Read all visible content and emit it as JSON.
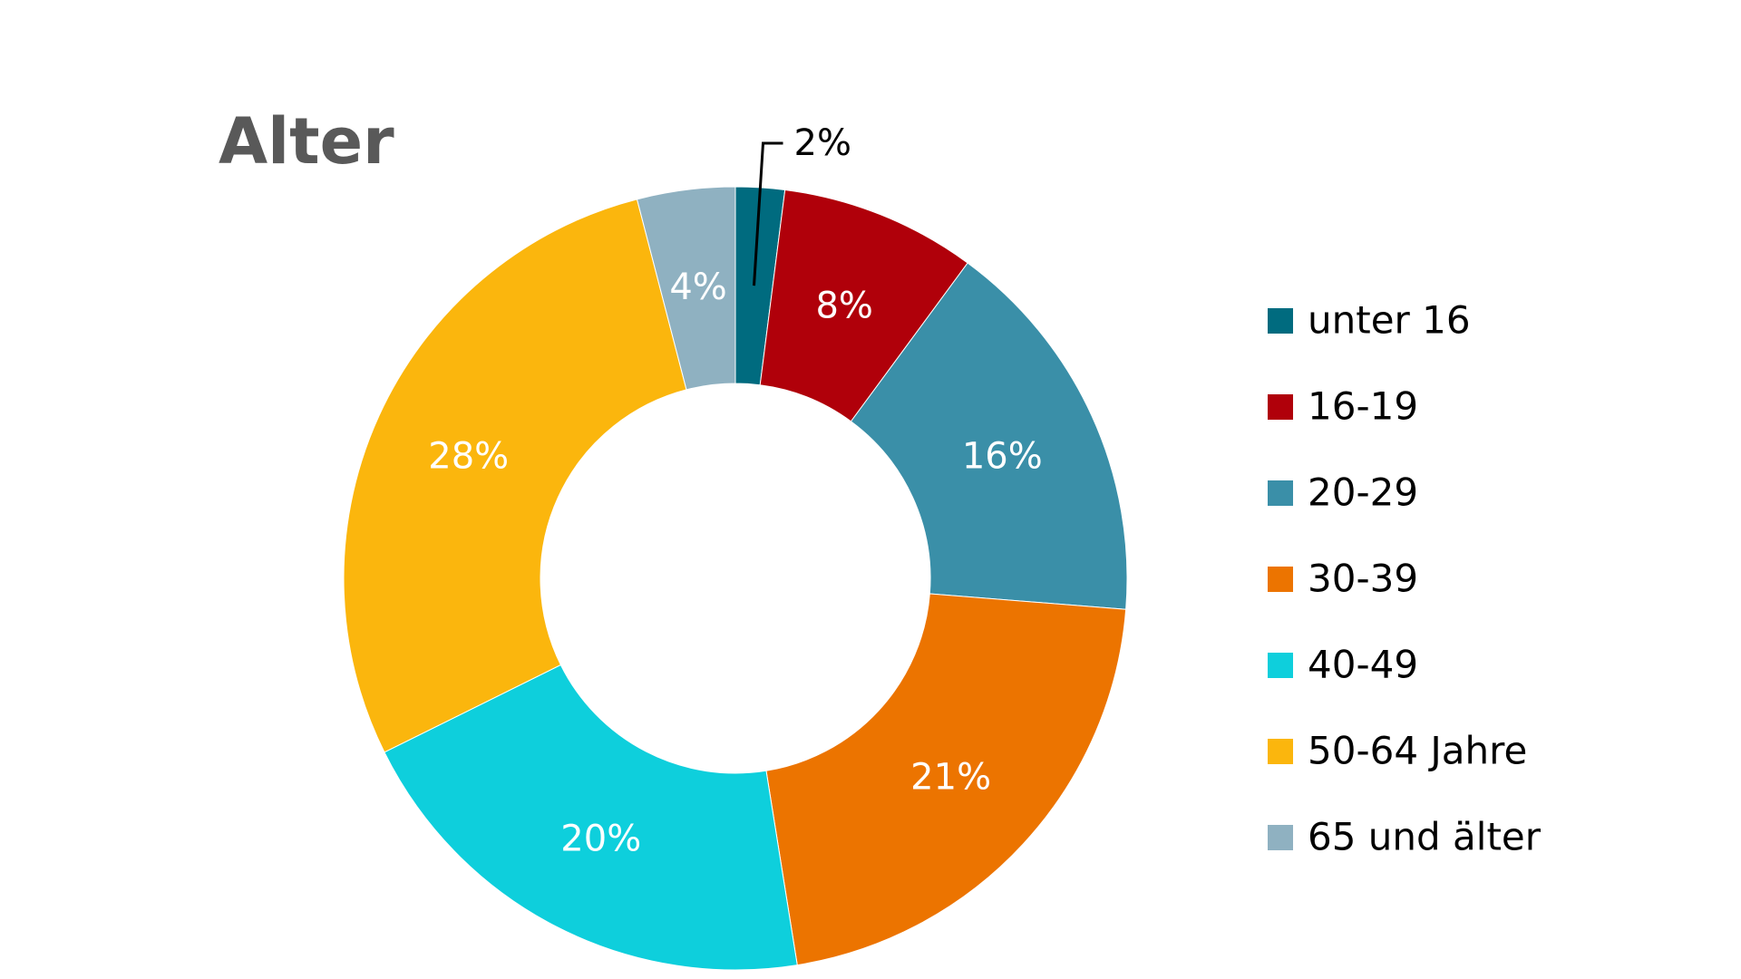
{
  "chart_data": {
    "type": "pie",
    "title": "Alter",
    "categories": [
      "unter 16",
      "16-19",
      "20-29",
      "30-39",
      "40-49",
      "50-64 Jahre",
      "65 und älter"
    ],
    "values": [
      2,
      8,
      16,
      21,
      20,
      28,
      4
    ],
    "value_labels": [
      "2%",
      "8%",
      "16%",
      "21%",
      "20%",
      "28%",
      "4%"
    ],
    "colors": [
      "#006b7f",
      "#b0000a",
      "#3a8fa8",
      "#ec7400",
      "#0ecfdc",
      "#fbb60d",
      "#8fb1c1"
    ],
    "legend": "right"
  }
}
